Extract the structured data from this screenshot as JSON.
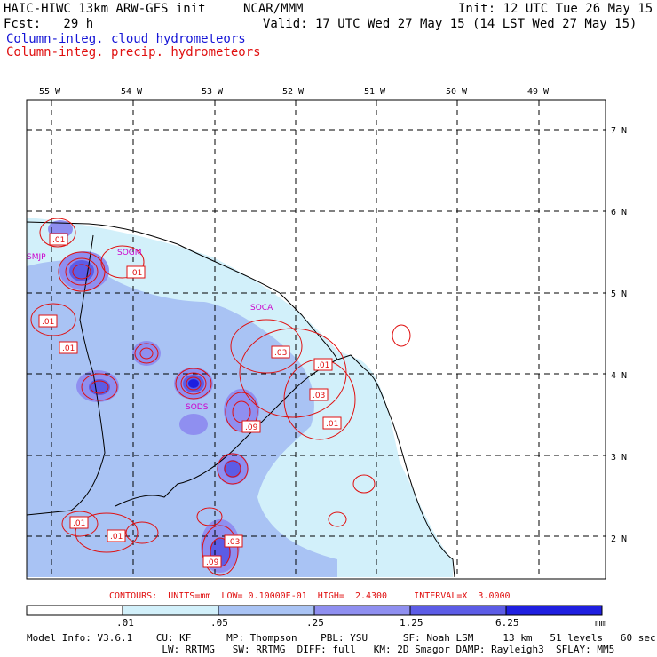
{
  "header": {
    "title_left": "HAIC-HIWC 13km ARW-GFS init",
    "org": "NCAR/MMM",
    "init": "Init: 12 UTC Tue 26 May 15",
    "fcst": "Fcst:   29 h",
    "valid": "Valid: 17 UTC Wed 27 May 15 (14 LST Wed 27 May 15)",
    "field1": "Column-integ. cloud hydrometeors",
    "field2": "Column-integ. precip. hydrometeors"
  },
  "axes": {
    "lon_labels": [
      "55 W",
      "54 W",
      "53 W",
      "52 W",
      "51 W",
      "50 W",
      "49 W"
    ],
    "lat_labels": [
      "7 N",
      "6 N",
      "5 N",
      "4 N",
      "3 N",
      "2 N"
    ]
  },
  "stations": [
    "SMJP",
    "SOGM",
    "SOCA",
    "SODS"
  ],
  "contour_labels": [
    ".01",
    ".01",
    ".01",
    ".01",
    ".03",
    ".01",
    ".03",
    ".09",
    ".01",
    ".01",
    ".01",
    ".03",
    ".09"
  ],
  "contours_info": "CONTOURS:  UNITS=mm  LOW= 0.10000E-01  HIGH=  2.4300     INTERVAL=X  3.0000",
  "colorbar": {
    "labels": [
      ".01",
      ".05",
      ".25",
      "1.25",
      "6.25",
      "mm"
    ],
    "colors": [
      "#ffffff",
      "#d2f0fa",
      "#a9c3f4",
      "#8f8ff0",
      "#5c5ce6",
      "#1f1fe0"
    ]
  },
  "model_info": {
    "line1": "Model Info: V3.6.1    CU: KF      MP: Thompson    PBL: YSU      SF: Noah LSM     13 km   51 levels   60 sec",
    "line2": "                       LW: RRTMG   SW: RRTMG  DIFF: full   KM: 2D Smagor DAMP: Rayleigh3  SFLAY: MM5"
  },
  "colors": {
    "precip": "#e01010",
    "cloud": "#1515d6",
    "station": "#cc00cc"
  }
}
